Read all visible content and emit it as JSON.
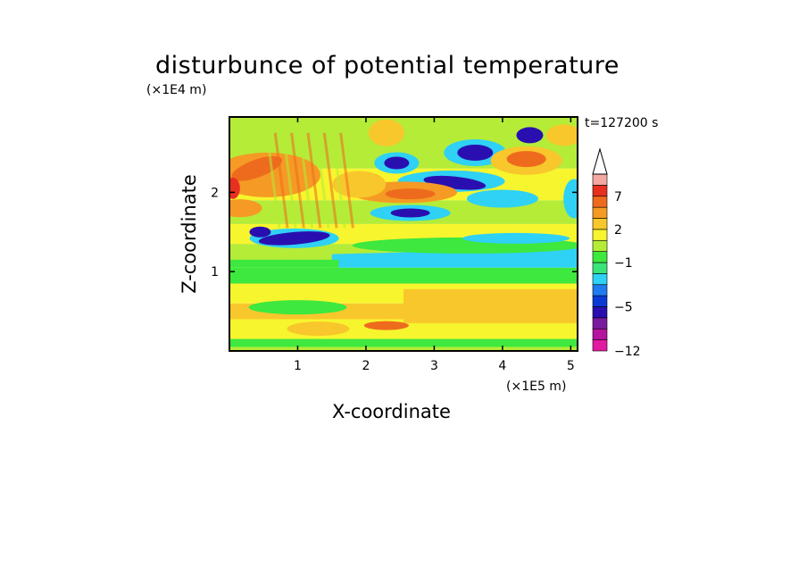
{
  "chart_data": {
    "type": "heatmap",
    "title": "disturbunce of potential temperature",
    "xlabel": "X-coordinate",
    "ylabel": "Z-coordinate",
    "x_unit": "(×1E5 m)",
    "y_unit": "(×1E4 m)",
    "time_label": "t=127200 s",
    "xlim": [
      0,
      5.1
    ],
    "ylim": [
      0,
      2.95
    ],
    "x_ticks": [
      1,
      2,
      3,
      4,
      5
    ],
    "y_ticks": [
      1,
      2
    ],
    "colorbar": {
      "tick_labels": [
        "7",
        "2",
        "−1",
        "−5",
        "−12"
      ],
      "tick_values": [
        7,
        2,
        -1,
        -5,
        -12
      ],
      "levels": [
        -12,
        -10,
        -8,
        -6,
        -5,
        -4,
        -3,
        -2,
        -1,
        0,
        1,
        2,
        3,
        5,
        7,
        9,
        11
      ],
      "colors": [
        "#e31ba0",
        "#b4149e",
        "#7a1a9e",
        "#2a0fb0",
        "#0a3ad6",
        "#1f7bf0",
        "#2fd1f5",
        "#39e47a",
        "#3ee83e",
        "#b5ec38",
        "#f7f52e",
        "#f8c72b",
        "#f59a24",
        "#ee6b1e",
        "#e83020",
        "#f3a8a2"
      ],
      "extend": "max"
    },
    "features": [
      {
        "kind": "band",
        "sign": "positive",
        "x": [
          0,
          5.1
        ],
        "z": [
          0.15,
          0.35
        ],
        "value": 2
      },
      {
        "kind": "band",
        "sign": "neutral",
        "x": [
          0,
          5.1
        ],
        "z": [
          0.85,
          1.05
        ],
        "value": 0
      },
      {
        "kind": "band",
        "sign": "negative",
        "x": [
          1.5,
          5.1
        ],
        "z": [
          1.05,
          1.35
        ],
        "value": -1
      },
      {
        "kind": "blob",
        "sign": "negative",
        "center": [
          0.9,
          1.45
        ],
        "value": -5
      },
      {
        "kind": "blob",
        "sign": "negative",
        "center": [
          2.65,
          1.75
        ],
        "value": -5
      },
      {
        "kind": "blob",
        "sign": "negative",
        "center": [
          3.3,
          2.13
        ],
        "value": -5
      },
      {
        "kind": "blob",
        "sign": "negative",
        "center": [
          3.6,
          2.5
        ],
        "value": -5
      },
      {
        "kind": "blob",
        "sign": "negative",
        "center": [
          2.4,
          2.38
        ],
        "value": -5
      },
      {
        "kind": "blob",
        "sign": "negative",
        "center": [
          4.4,
          2.72
        ],
        "value": -5
      },
      {
        "kind": "blob",
        "sign": "positive",
        "center": [
          0.5,
          2.2
        ],
        "value": 7
      },
      {
        "kind": "blob",
        "sign": "positive",
        "center": [
          2.6,
          2.0
        ],
        "value": 5
      },
      {
        "kind": "blob",
        "sign": "positive",
        "center": [
          4.3,
          2.4
        ],
        "value": 5
      },
      {
        "kind": "blob",
        "sign": "positive",
        "center": [
          3.8,
          0.6
        ],
        "value": 2
      }
    ]
  }
}
